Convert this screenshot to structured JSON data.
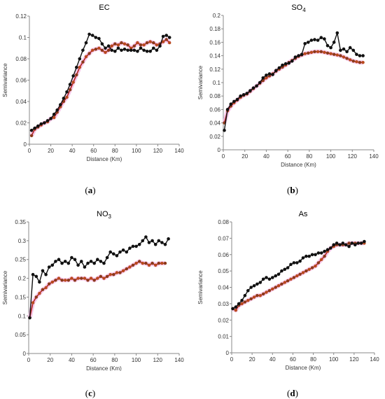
{
  "captions": [
    "a",
    "b",
    "c",
    "d"
  ],
  "chart_data": [
    {
      "type": "line",
      "title": "EC",
      "title_sub": "",
      "xlabel": "Distance (Km)",
      "ylabel": "Semivariance",
      "xlim": [
        0,
        140
      ],
      "ylim": [
        0,
        0.12
      ],
      "xticks": [
        0,
        20,
        40,
        60,
        80,
        100,
        120,
        140
      ],
      "yticks": [
        0,
        0.02,
        0.04,
        0.06,
        0.08,
        0.1,
        0.12
      ],
      "ytick_labels": [
        "0",
        "0.02",
        "0.04",
        "0.06",
        "0.08",
        "0.1",
        "0.12"
      ],
      "series": [
        {
          "color": "#111111",
          "x": [
            2,
            5,
            8,
            11,
            14,
            17,
            20,
            23,
            26,
            29,
            32,
            35,
            38,
            41,
            44,
            47,
            50,
            53,
            56,
            59,
            62,
            65,
            68,
            71,
            74,
            77,
            80,
            83,
            86,
            89,
            92,
            95,
            98,
            101,
            104,
            107,
            110,
            113,
            116,
            119,
            122,
            125,
            128,
            131
          ],
          "y": [
            0.013,
            0.015,
            0.017,
            0.019,
            0.02,
            0.022,
            0.024,
            0.028,
            0.032,
            0.037,
            0.043,
            0.049,
            0.056,
            0.064,
            0.072,
            0.08,
            0.088,
            0.095,
            0.103,
            0.102,
            0.1,
            0.099,
            0.094,
            0.09,
            0.092,
            0.088,
            0.087,
            0.09,
            0.088,
            0.089,
            0.088,
            0.088,
            0.088,
            0.087,
            0.09,
            0.088,
            0.087,
            0.087,
            0.09,
            0.088,
            0.092,
            0.101,
            0.102,
            0.1
          ]
        },
        {
          "color": "#b22222",
          "x": [
            2,
            5,
            8,
            11,
            14,
            17,
            20,
            23,
            26,
            29,
            32,
            35,
            38,
            41,
            44,
            47,
            50,
            53,
            56,
            59,
            62,
            65,
            68,
            71,
            74,
            77,
            80,
            83,
            86,
            89,
            92,
            95,
            98,
            101,
            104,
            107,
            110,
            113,
            116,
            119,
            122,
            125,
            128,
            131
          ],
          "y": [
            0.008,
            0.014,
            0.016,
            0.018,
            0.02,
            0.021,
            0.024,
            0.025,
            0.03,
            0.035,
            0.04,
            0.044,
            0.051,
            0.058,
            0.065,
            0.072,
            0.077,
            0.082,
            0.085,
            0.088,
            0.089,
            0.09,
            0.088,
            0.086,
            0.088,
            0.092,
            0.094,
            0.093,
            0.095,
            0.094,
            0.093,
            0.09,
            0.092,
            0.095,
            0.093,
            0.093,
            0.095,
            0.096,
            0.095,
            0.093,
            0.094,
            0.096,
            0.098,
            0.095
          ]
        }
      ]
    },
    {
      "type": "line",
      "title": "SO",
      "title_sub": "4",
      "xlabel": "Distance (Km)",
      "ylabel": "Semivariance",
      "xlim": [
        0,
        140
      ],
      "ylim": [
        0,
        0.2
      ],
      "xticks": [
        0,
        20,
        40,
        60,
        80,
        100,
        120,
        140
      ],
      "yticks": [
        0,
        0.02,
        0.04,
        0.06,
        0.08,
        0.1,
        0.12,
        0.14,
        0.16,
        0.18,
        0.2
      ],
      "ytick_labels": [
        "0",
        "0.02",
        "0.04",
        "0.06",
        "0.08",
        "0.1",
        "0.12",
        "0.14",
        "0.16",
        "0.18",
        "0.2"
      ],
      "series": [
        {
          "color": "#111111",
          "x": [
            1,
            4,
            7,
            10,
            13,
            16,
            19,
            22,
            25,
            28,
            31,
            34,
            37,
            40,
            43,
            46,
            49,
            52,
            55,
            58,
            61,
            64,
            67,
            70,
            73,
            76,
            79,
            82,
            85,
            88,
            91,
            94,
            97,
            100,
            103,
            106,
            109,
            112,
            115,
            118,
            121,
            124,
            127,
            130
          ],
          "y": [
            0.029,
            0.06,
            0.068,
            0.072,
            0.075,
            0.08,
            0.082,
            0.084,
            0.088,
            0.092,
            0.095,
            0.1,
            0.107,
            0.111,
            0.113,
            0.112,
            0.118,
            0.122,
            0.126,
            0.128,
            0.129,
            0.132,
            0.138,
            0.14,
            0.142,
            0.158,
            0.16,
            0.163,
            0.164,
            0.163,
            0.167,
            0.165,
            0.155,
            0.152,
            0.16,
            0.174,
            0.148,
            0.15,
            0.146,
            0.152,
            0.148,
            0.142,
            0.14,
            0.14
          ]
        },
        {
          "color": "#b22222",
          "x": [
            1,
            4,
            7,
            10,
            13,
            16,
            19,
            22,
            25,
            28,
            31,
            34,
            37,
            40,
            43,
            46,
            49,
            52,
            55,
            58,
            61,
            64,
            67,
            70,
            73,
            76,
            79,
            82,
            85,
            88,
            91,
            94,
            97,
            100,
            103,
            106,
            109,
            112,
            115,
            118,
            121,
            124,
            127,
            130
          ],
          "y": [
            0.04,
            0.058,
            0.065,
            0.07,
            0.074,
            0.078,
            0.081,
            0.083,
            0.087,
            0.091,
            0.095,
            0.099,
            0.103,
            0.107,
            0.11,
            0.113,
            0.117,
            0.12,
            0.123,
            0.126,
            0.13,
            0.133,
            0.136,
            0.139,
            0.141,
            0.143,
            0.144,
            0.145,
            0.146,
            0.146,
            0.146,
            0.145,
            0.144,
            0.143,
            0.142,
            0.141,
            0.14,
            0.138,
            0.136,
            0.134,
            0.132,
            0.131,
            0.13,
            0.13
          ]
        }
      ]
    },
    {
      "type": "line",
      "title": "NO",
      "title_sub": "3",
      "xlabel": "Distance (Km)",
      "ylabel": "Semivariance",
      "xlim": [
        0,
        140
      ],
      "ylim": [
        0,
        0.35
      ],
      "xticks": [
        0,
        20,
        40,
        60,
        80,
        100,
        120,
        140
      ],
      "yticks": [
        0,
        0.05,
        0.1,
        0.15,
        0.2,
        0.25,
        0.3,
        0.35
      ],
      "ytick_labels": [
        "0",
        "0.05",
        "0.1",
        "0.15",
        "0.2",
        "0.25",
        "0.3",
        "0.35"
      ],
      "series": [
        {
          "color": "#111111",
          "x": [
            1,
            4,
            7,
            10,
            13,
            16,
            19,
            22,
            25,
            28,
            31,
            34,
            37,
            40,
            43,
            46,
            49,
            52,
            55,
            58,
            61,
            64,
            67,
            70,
            73,
            76,
            79,
            82,
            85,
            88,
            91,
            94,
            97,
            100,
            103,
            106,
            109,
            112,
            115,
            118,
            121,
            124,
            127,
            130
          ],
          "y": [
            0.095,
            0.21,
            0.205,
            0.19,
            0.22,
            0.21,
            0.23,
            0.235,
            0.245,
            0.25,
            0.24,
            0.245,
            0.24,
            0.255,
            0.25,
            0.235,
            0.245,
            0.23,
            0.24,
            0.245,
            0.24,
            0.25,
            0.245,
            0.24,
            0.255,
            0.27,
            0.265,
            0.26,
            0.27,
            0.275,
            0.27,
            0.28,
            0.285,
            0.285,
            0.29,
            0.3,
            0.31,
            0.295,
            0.3,
            0.29,
            0.3,
            0.295,
            0.29,
            0.305
          ]
        },
        {
          "color": "#b22222",
          "x": [
            1,
            4,
            7,
            10,
            13,
            16,
            19,
            22,
            25,
            28,
            31,
            34,
            37,
            40,
            43,
            46,
            49,
            52,
            55,
            58,
            61,
            64,
            67,
            70,
            73,
            76,
            79,
            82,
            85,
            88,
            91,
            94,
            97,
            100,
            103,
            106,
            109,
            112,
            115,
            118,
            121,
            124,
            127
          ],
          "y": [
            0.095,
            0.135,
            0.15,
            0.16,
            0.17,
            0.175,
            0.185,
            0.19,
            0.195,
            0.2,
            0.195,
            0.195,
            0.195,
            0.2,
            0.195,
            0.2,
            0.2,
            0.2,
            0.195,
            0.2,
            0.195,
            0.2,
            0.205,
            0.2,
            0.205,
            0.21,
            0.21,
            0.215,
            0.215,
            0.22,
            0.225,
            0.23,
            0.235,
            0.24,
            0.245,
            0.24,
            0.24,
            0.235,
            0.24,
            0.235,
            0.24,
            0.24,
            0.24
          ]
        }
      ]
    },
    {
      "type": "line",
      "title": "As",
      "title_sub": "",
      "xlabel": "Distance (Km)",
      "ylabel": "Semivariance",
      "xlim": [
        0,
        140
      ],
      "ylim": [
        0,
        0.08
      ],
      "xticks": [
        0,
        20,
        40,
        60,
        80,
        100,
        120,
        140
      ],
      "yticks": [
        0,
        0.01,
        0.02,
        0.03,
        0.04,
        0.05,
        0.06,
        0.07,
        0.08
      ],
      "ytick_labels": [
        "0",
        "0.01",
        "0.02",
        "0.03",
        "0.04",
        "0.05",
        "0.06",
        "0.07",
        "0.08"
      ],
      "series": [
        {
          "color": "#111111",
          "x": [
            1,
            4,
            7,
            10,
            13,
            16,
            19,
            22,
            25,
            28,
            31,
            34,
            37,
            40,
            43,
            46,
            49,
            52,
            55,
            58,
            61,
            64,
            67,
            70,
            73,
            76,
            79,
            82,
            85,
            88,
            91,
            94,
            97,
            100,
            103,
            106,
            109,
            112,
            115,
            118,
            121,
            124,
            127,
            130
          ],
          "y": [
            0.027,
            0.028,
            0.03,
            0.032,
            0.035,
            0.038,
            0.04,
            0.041,
            0.042,
            0.043,
            0.045,
            0.046,
            0.045,
            0.046,
            0.047,
            0.048,
            0.05,
            0.051,
            0.052,
            0.054,
            0.055,
            0.055,
            0.056,
            0.058,
            0.059,
            0.059,
            0.06,
            0.06,
            0.061,
            0.061,
            0.062,
            0.063,
            0.064,
            0.066,
            0.067,
            0.066,
            0.067,
            0.066,
            0.065,
            0.067,
            0.066,
            0.067,
            0.067,
            0.068
          ]
        },
        {
          "color": "#b22222",
          "x": [
            1,
            4,
            7,
            10,
            13,
            16,
            19,
            22,
            25,
            28,
            31,
            34,
            37,
            40,
            43,
            46,
            49,
            52,
            55,
            58,
            61,
            64,
            67,
            70,
            73,
            76,
            79,
            82,
            85,
            88,
            91,
            94,
            97,
            100,
            103,
            106,
            109,
            112,
            115,
            118,
            121,
            124,
            127,
            130
          ],
          "y": [
            0.027,
            0.026,
            0.029,
            0.03,
            0.031,
            0.032,
            0.033,
            0.034,
            0.035,
            0.035,
            0.036,
            0.037,
            0.038,
            0.039,
            0.04,
            0.041,
            0.042,
            0.043,
            0.044,
            0.045,
            0.046,
            0.047,
            0.048,
            0.049,
            0.05,
            0.051,
            0.052,
            0.053,
            0.055,
            0.057,
            0.059,
            0.062,
            0.064,
            0.065,
            0.066,
            0.066,
            0.066,
            0.066,
            0.067,
            0.067,
            0.067,
            0.067,
            0.067,
            0.067
          ]
        }
      ]
    }
  ]
}
